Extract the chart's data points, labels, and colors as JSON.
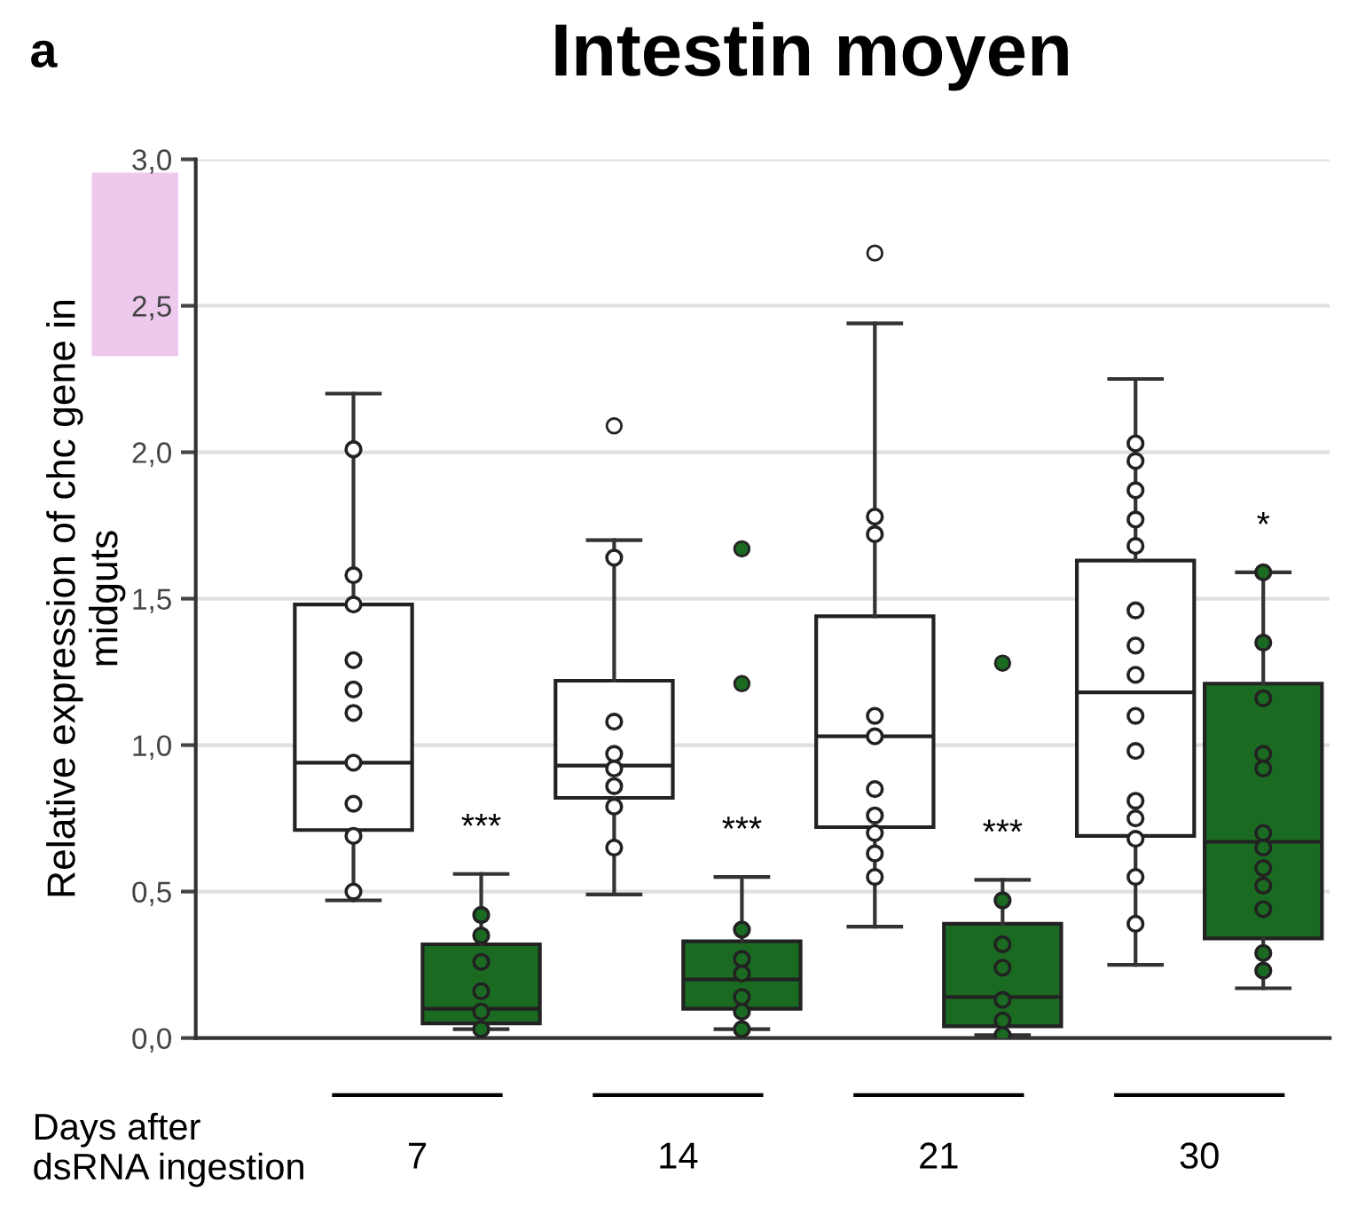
{
  "chart_data": {
    "type": "box",
    "title": "Intestin moyen",
    "xlabel": "Days after\ndsRNA ingestion",
    "ylabel": "Relative expression of chc gene in\nmidguts",
    "categories": [
      "7",
      "14",
      "21",
      "30"
    ],
    "series": [
      {
        "color": "#ffffff",
        "boxes": [
          {
            "low": 0.47,
            "q1": 0.71,
            "median": 0.94,
            "q3": 1.48,
            "high": 2.2
          },
          {
            "low": 0.49,
            "q1": 0.82,
            "median": 0.93,
            "q3": 1.22,
            "high": 1.7,
            "outliers": [
              2.09
            ]
          },
          {
            "low": 0.38,
            "q1": 0.72,
            "median": 1.03,
            "q3": 1.44,
            "high": 2.44,
            "outliers": [
              2.68
            ]
          },
          {
            "low": 0.25,
            "q1": 0.69,
            "median": 1.18,
            "q3": 1.63,
            "high": 2.25
          }
        ]
      },
      {
        "color": "#1a6b21",
        "boxes": [
          {
            "low": 0.03,
            "q1": 0.05,
            "median": 0.1,
            "q3": 0.32,
            "high": 0.56
          },
          {
            "low": 0.03,
            "q1": 0.1,
            "median": 0.2,
            "q3": 0.33,
            "high": 0.55,
            "outliers": [
              1.67,
              1.21
            ]
          },
          {
            "low": 0.01,
            "q1": 0.04,
            "median": 0.14,
            "q3": 0.39,
            "high": 0.54,
            "outliers": [
              1.28
            ]
          },
          {
            "low": 0.17,
            "q1": 0.34,
            "median": 0.67,
            "q3": 1.21,
            "high": 1.59
          }
        ]
      },
      {
        "type": "scatter",
        "color": "#ffffff",
        "x": [
          "7",
          "7",
          "7",
          "7",
          "7",
          "7",
          "7",
          "7",
          "7",
          "7",
          "14",
          "14",
          "14",
          "14",
          "14",
          "14",
          "14",
          "21",
          "21",
          "21",
          "21",
          "21",
          "21",
          "21",
          "21",
          "21",
          "30",
          "30",
          "30",
          "30",
          "30",
          "30",
          "30",
          "30",
          "30",
          "30",
          "30",
          "30",
          "30",
          "30",
          "30"
        ],
        "values": [
          2.01,
          1.58,
          1.48,
          1.29,
          1.19,
          1.11,
          0.94,
          0.8,
          0.69,
          0.5,
          1.64,
          1.08,
          0.97,
          0.92,
          0.86,
          0.79,
          0.65,
          1.78,
          1.72,
          1.1,
          1.03,
          0.85,
          0.76,
          0.7,
          0.63,
          0.55,
          2.03,
          1.97,
          1.87,
          1.77,
          1.68,
          1.46,
          1.34,
          1.24,
          1.1,
          0.98,
          0.81,
          0.75,
          0.68,
          0.55,
          0.39
        ]
      },
      {
        "type": "scatter",
        "color": "#1a6b21",
        "x": [
          "7",
          "7",
          "7",
          "7",
          "7",
          "7",
          "14",
          "14",
          "14",
          "14",
          "14",
          "14",
          "21",
          "21",
          "21",
          "21",
          "21",
          "21",
          "30",
          "30",
          "30",
          "30",
          "30",
          "30",
          "30",
          "30",
          "30",
          "30",
          "30",
          "30"
        ],
        "values": [
          0.42,
          0.35,
          0.26,
          0.16,
          0.09,
          0.03,
          0.37,
          0.27,
          0.22,
          0.14,
          0.09,
          0.03,
          0.47,
          0.32,
          0.24,
          0.13,
          0.06,
          0.01,
          1.59,
          1.35,
          1.16,
          0.97,
          0.92,
          0.7,
          0.65,
          0.58,
          0.52,
          0.44,
          0.29,
          0.23
        ]
      }
    ],
    "ylim": [
      0,
      3.0
    ],
    "yticks": [
      {
        "value": 0,
        "label": "0,0"
      },
      {
        "value": 0.5,
        "label": "0,5"
      },
      {
        "value": 1.0,
        "label": "1,0"
      },
      {
        "value": 1.5,
        "label": "1,5"
      },
      {
        "value": 2.0,
        "label": "2,0"
      },
      {
        "value": 2.5,
        "label": "2,5"
      },
      {
        "value": 3.0,
        "label": "3,0"
      }
    ],
    "grid": "y",
    "marker": "circle",
    "annotations": [
      "a",
      "***",
      "***",
      "***",
      "*"
    ]
  }
}
